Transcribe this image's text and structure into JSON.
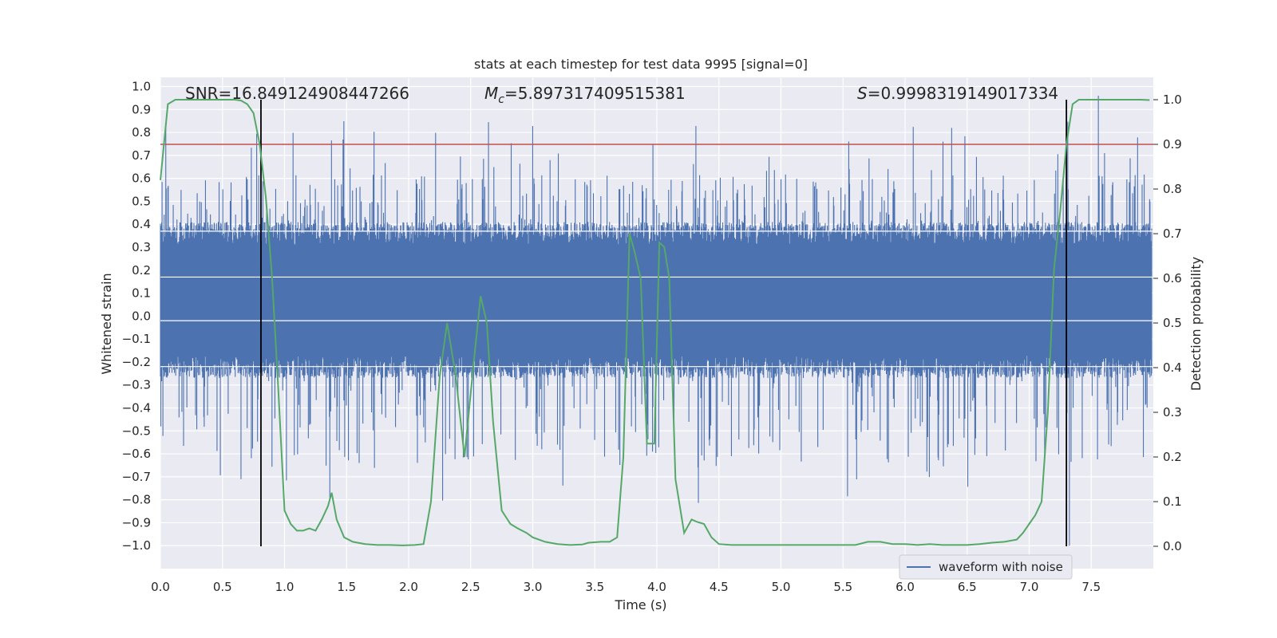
{
  "chart_data": {
    "type": "line",
    "title": "stats at each timestep for test data 9995 [signal=0]",
    "xlabel": "Time (s)",
    "ylabel": "Whitened strain",
    "y2label": "Detection probability",
    "xlim": [
      0.0,
      8.0
    ],
    "ylim": [
      -1.1,
      1.04
    ],
    "y2lim": [
      -0.05,
      1.05
    ],
    "xticks": [
      0.0,
      0.5,
      1.0,
      1.5,
      2.0,
      2.5,
      3.0,
      3.5,
      4.0,
      4.5,
      5.0,
      5.5,
      6.0,
      6.5,
      7.0,
      7.5
    ],
    "xtick_labels": [
      "0.0",
      "0.5",
      "1.0",
      "1.5",
      "2.0",
      "2.5",
      "3.0",
      "3.5",
      "4.0",
      "4.5",
      "5.0",
      "5.5",
      "6.0",
      "6.5",
      "7.0",
      "7.5"
    ],
    "yticks": [
      -1.0,
      -0.9,
      -0.8,
      -0.7,
      -0.6,
      -0.5,
      -0.4,
      -0.3,
      -0.2,
      -0.1,
      0.0,
      0.1,
      0.2,
      0.3,
      0.4,
      0.5,
      0.6,
      0.7,
      0.8,
      0.9,
      1.0
    ],
    "ytick_labels": [
      "−1.0",
      "−0.9",
      "−0.8",
      "−0.7",
      "−0.6",
      "−0.5",
      "−0.4",
      "−0.3",
      "−0.2",
      "−0.1",
      "0.0",
      "0.1",
      "0.2",
      "0.3",
      "0.4",
      "0.5",
      "0.6",
      "0.7",
      "0.8",
      "0.9",
      "1.0"
    ],
    "y2ticks": [
      0.0,
      0.1,
      0.2,
      0.3,
      0.4,
      0.5,
      0.6,
      0.7,
      0.8,
      0.9,
      1.0
    ],
    "y2tick_labels": [
      "0.0",
      "0.1",
      "0.2",
      "0.3",
      "0.4",
      "0.5",
      "0.6",
      "0.7",
      "0.8",
      "0.9",
      "1.0"
    ],
    "annotations": {
      "snr": "SNR=16.849124908447266",
      "mc_symbol": "M",
      "mc_subscript": "c",
      "mc_value": "=5.897317409515381",
      "s_symbol": "S",
      "s_value": "=0.9998319149017334"
    },
    "legend": {
      "label": "waveform with noise",
      "loc": "lower right"
    },
    "series": [
      {
        "name": "waveform with noise",
        "color": "#4c72b0",
        "axis": "left",
        "kind": "noise",
        "dense_band": [
          -0.22,
          0.36
        ],
        "peak_range": [
          -1.0,
          0.96
        ]
      },
      {
        "name": "detection probability",
        "color": "#55a868",
        "axis": "right",
        "x": [
          0.0,
          0.06,
          0.12,
          0.2,
          0.3,
          0.4,
          0.5,
          0.6,
          0.65,
          0.7,
          0.75,
          0.8,
          0.85,
          0.9,
          0.95,
          1.0,
          1.05,
          1.1,
          1.15,
          1.2,
          1.25,
          1.3,
          1.35,
          1.38,
          1.42,
          1.48,
          1.55,
          1.65,
          1.75,
          1.85,
          1.95,
          2.05,
          2.12,
          2.18,
          2.25,
          2.31,
          2.38,
          2.45,
          2.52,
          2.58,
          2.63,
          2.68,
          2.75,
          2.82,
          2.88,
          2.95,
          3.0,
          3.1,
          3.2,
          3.3,
          3.4,
          3.45,
          3.55,
          3.62,
          3.68,
          3.73,
          3.78,
          3.82,
          3.87,
          3.92,
          3.98,
          4.02,
          4.06,
          4.1,
          4.15,
          4.22,
          4.28,
          4.32,
          4.38,
          4.44,
          4.5,
          4.6,
          4.7,
          4.8,
          4.9,
          5.0,
          5.1,
          5.2,
          5.3,
          5.4,
          5.5,
          5.6,
          5.7,
          5.8,
          5.9,
          6.0,
          6.1,
          6.2,
          6.3,
          6.4,
          6.5,
          6.6,
          6.7,
          6.8,
          6.9,
          6.95,
          7.0,
          7.05,
          7.1,
          7.15,
          7.2,
          7.25,
          7.3,
          7.35,
          7.4,
          7.45,
          7.5,
          7.6,
          7.7,
          7.8,
          7.9,
          7.97
        ],
        "y": [
          0.82,
          0.99,
          1.0,
          1.0,
          1.0,
          1.0,
          1.0,
          1.0,
          0.998,
          0.99,
          0.97,
          0.9,
          0.78,
          0.6,
          0.35,
          0.08,
          0.05,
          0.035,
          0.035,
          0.04,
          0.035,
          0.06,
          0.09,
          0.12,
          0.06,
          0.02,
          0.01,
          0.005,
          0.003,
          0.003,
          0.002,
          0.003,
          0.005,
          0.1,
          0.38,
          0.5,
          0.38,
          0.2,
          0.4,
          0.56,
          0.5,
          0.28,
          0.08,
          0.05,
          0.04,
          0.03,
          0.02,
          0.01,
          0.005,
          0.003,
          0.004,
          0.008,
          0.01,
          0.01,
          0.02,
          0.2,
          0.7,
          0.66,
          0.6,
          0.23,
          0.23,
          0.68,
          0.67,
          0.6,
          0.15,
          0.03,
          0.06,
          0.055,
          0.05,
          0.02,
          0.005,
          0.003,
          0.003,
          0.003,
          0.003,
          0.003,
          0.003,
          0.003,
          0.003,
          0.003,
          0.003,
          0.003,
          0.01,
          0.01,
          0.005,
          0.005,
          0.003,
          0.005,
          0.003,
          0.003,
          0.003,
          0.005,
          0.008,
          0.01,
          0.015,
          0.03,
          0.05,
          0.07,
          0.1,
          0.3,
          0.62,
          0.75,
          0.9,
          0.99,
          1.0,
          1.0,
          1.0,
          1.0,
          1.0,
          1.0,
          1.0,
          0.999
        ]
      }
    ],
    "threshold": {
      "value": 0.9,
      "axis": "right",
      "color": "#c44e52"
    },
    "vertical_markers": {
      "x": [
        0.81,
        7.3
      ],
      "color": "#000000"
    }
  }
}
